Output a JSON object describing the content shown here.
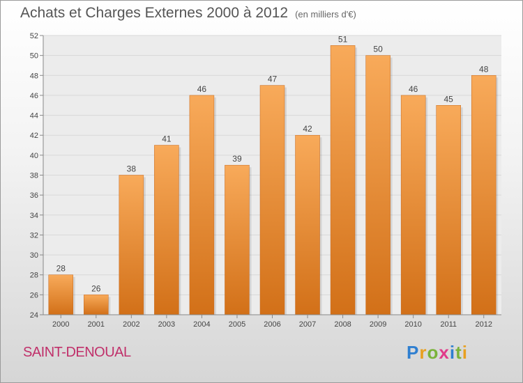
{
  "title": "Achats et Charges Externes 2000 à 2012",
  "subtitle": "(en milliers d'€)",
  "commune": "SAINT-DENOUAL",
  "logo": {
    "letters": [
      "P",
      "r",
      "o",
      "x",
      "i",
      "t",
      "i"
    ],
    "colors": [
      "#2f7fd0",
      "#e8a020",
      "#7ab33a",
      "#e13a8a",
      "#2f7fd0",
      "#7ab33a",
      "#e8a020"
    ]
  },
  "colors": {
    "bar_top": "#f8aa5a",
    "bar_bottom": "#d27018",
    "grid": "#d8d8d8",
    "axis": "#888888",
    "text": "#444444"
  },
  "chart_data": {
    "type": "bar",
    "categories": [
      "2000",
      "2001",
      "2002",
      "2003",
      "2004",
      "2005",
      "2006",
      "2007",
      "2008",
      "2009",
      "2010",
      "2011",
      "2012"
    ],
    "values": [
      28,
      26,
      38,
      41,
      46,
      39,
      47,
      42,
      51,
      50,
      46,
      45,
      48
    ],
    "ylim": [
      24,
      52
    ],
    "yticks": [
      24,
      26,
      28,
      30,
      32,
      34,
      36,
      38,
      40,
      42,
      44,
      46,
      48,
      50,
      52
    ],
    "grid": true,
    "data_labels": true
  }
}
